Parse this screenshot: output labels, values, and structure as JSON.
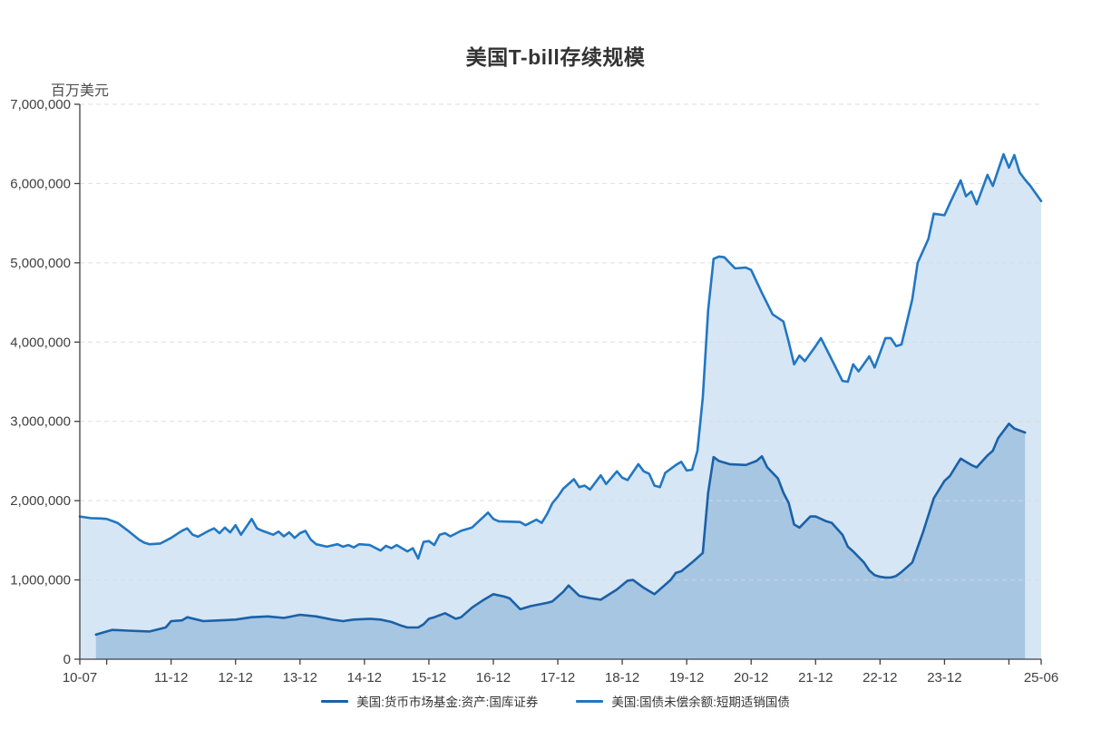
{
  "chart_data": {
    "type": "area",
    "title": "美国T-bill存续规模",
    "unit_label": "百万美元",
    "legend_position": "bottom-center",
    "grid": "horizontal-dashed",
    "colors": {
      "gridline": "#d9d9d9",
      "axis": "#404040",
      "tick_text": "#404040",
      "title_text": "#333333",
      "background": "#ffffff"
    },
    "y_axis": {
      "min": 0,
      "max": 7000000,
      "tick_step": 1000000,
      "tick_labels": [
        "0",
        "1,000,000",
        "2,000,000",
        "3,000,000",
        "4,000,000",
        "5,000,000",
        "6,000,000",
        "7,000,000"
      ]
    },
    "x_axis": {
      "start": "2010-07",
      "end": "2025-06",
      "ticks": [
        {
          "label": "10-07",
          "month": "2010-07"
        },
        {
          "label": "",
          "month": "2010-12"
        },
        {
          "label": "11-12",
          "month": "2011-12"
        },
        {
          "label": "12-12",
          "month": "2012-12"
        },
        {
          "label": "13-12",
          "month": "2013-12"
        },
        {
          "label": "14-12",
          "month": "2014-12"
        },
        {
          "label": "15-12",
          "month": "2015-12"
        },
        {
          "label": "16-12",
          "month": "2016-12"
        },
        {
          "label": "17-12",
          "month": "2017-12"
        },
        {
          "label": "18-12",
          "month": "2018-12"
        },
        {
          "label": "19-12",
          "month": "2019-12"
        },
        {
          "label": "20-12",
          "month": "2020-12"
        },
        {
          "label": "21-12",
          "month": "2021-12"
        },
        {
          "label": "22-12",
          "month": "2022-12"
        },
        {
          "label": "23-12",
          "month": "2023-12"
        },
        {
          "label": "",
          "month": "2024-12"
        },
        {
          "label": "25-06",
          "month": "2025-06"
        }
      ]
    },
    "series": [
      {
        "name": "美国:货币市场基金:资产:国库证券",
        "line_color": "#1a61a8",
        "fill_color": "#a7c6e2",
        "points": [
          [
            "2010-10",
            310000
          ],
          [
            "2010-11",
            330000
          ],
          [
            "2011-01",
            370000
          ],
          [
            "2011-04",
            360000
          ],
          [
            "2011-08",
            350000
          ],
          [
            "2011-11",
            400000
          ],
          [
            "2011-12",
            480000
          ],
          [
            "2012-02",
            490000
          ],
          [
            "2012-03",
            530000
          ],
          [
            "2012-06",
            480000
          ],
          [
            "2012-09",
            490000
          ],
          [
            "2012-12",
            500000
          ],
          [
            "2013-03",
            530000
          ],
          [
            "2013-06",
            540000
          ],
          [
            "2013-09",
            520000
          ],
          [
            "2013-12",
            560000
          ],
          [
            "2014-03",
            540000
          ],
          [
            "2014-06",
            500000
          ],
          [
            "2014-08",
            480000
          ],
          [
            "2014-10",
            500000
          ],
          [
            "2015-01",
            510000
          ],
          [
            "2015-03",
            500000
          ],
          [
            "2015-05",
            470000
          ],
          [
            "2015-07",
            420000
          ],
          [
            "2015-08",
            400000
          ],
          [
            "2015-10",
            400000
          ],
          [
            "2015-11",
            440000
          ],
          [
            "2015-12",
            510000
          ],
          [
            "2016-01",
            530000
          ],
          [
            "2016-03",
            580000
          ],
          [
            "2016-05",
            510000
          ],
          [
            "2016-06",
            530000
          ],
          [
            "2016-08",
            650000
          ],
          [
            "2016-10",
            740000
          ],
          [
            "2016-12",
            820000
          ],
          [
            "2017-02",
            790000
          ],
          [
            "2017-03",
            770000
          ],
          [
            "2017-05",
            630000
          ],
          [
            "2017-07",
            670000
          ],
          [
            "2017-10",
            710000
          ],
          [
            "2017-11",
            730000
          ],
          [
            "2018-01",
            850000
          ],
          [
            "2018-02",
            930000
          ],
          [
            "2018-04",
            800000
          ],
          [
            "2018-06",
            770000
          ],
          [
            "2018-08",
            750000
          ],
          [
            "2018-11",
            880000
          ],
          [
            "2019-01",
            990000
          ],
          [
            "2019-02",
            1000000
          ],
          [
            "2019-04",
            900000
          ],
          [
            "2019-06",
            820000
          ],
          [
            "2019-09",
            1000000
          ],
          [
            "2019-10",
            1090000
          ],
          [
            "2019-11",
            1110000
          ],
          [
            "2020-01",
            1220000
          ],
          [
            "2020-03",
            1340000
          ],
          [
            "2020-04",
            2100000
          ],
          [
            "2020-05",
            2550000
          ],
          [
            "2020-06",
            2500000
          ],
          [
            "2020-08",
            2460000
          ],
          [
            "2020-11",
            2450000
          ],
          [
            "2021-01",
            2500000
          ],
          [
            "2021-02",
            2560000
          ],
          [
            "2021-03",
            2420000
          ],
          [
            "2021-05",
            2280000
          ],
          [
            "2021-06",
            2100000
          ],
          [
            "2021-07",
            1970000
          ],
          [
            "2021-08",
            1700000
          ],
          [
            "2021-09",
            1660000
          ],
          [
            "2021-11",
            1800000
          ],
          [
            "2021-12",
            1800000
          ],
          [
            "2022-02",
            1740000
          ],
          [
            "2022-03",
            1720000
          ],
          [
            "2022-05",
            1570000
          ],
          [
            "2022-06",
            1420000
          ],
          [
            "2022-07",
            1360000
          ],
          [
            "2022-09",
            1220000
          ],
          [
            "2022-10",
            1120000
          ],
          [
            "2022-11",
            1060000
          ],
          [
            "2022-12",
            1040000
          ],
          [
            "2023-01",
            1030000
          ],
          [
            "2023-02",
            1030000
          ],
          [
            "2023-03",
            1050000
          ],
          [
            "2023-04",
            1100000
          ],
          [
            "2023-06",
            1220000
          ],
          [
            "2023-08",
            1600000
          ],
          [
            "2023-10",
            2030000
          ],
          [
            "2023-12",
            2250000
          ],
          [
            "2024-01",
            2310000
          ],
          [
            "2024-03",
            2530000
          ],
          [
            "2024-05",
            2450000
          ],
          [
            "2024-06",
            2420000
          ],
          [
            "2024-08",
            2570000
          ],
          [
            "2024-09",
            2630000
          ],
          [
            "2024-10",
            2790000
          ],
          [
            "2024-12",
            2970000
          ],
          [
            "2025-01",
            2910000
          ],
          [
            "2025-03",
            2860000
          ]
        ]
      },
      {
        "name": "美国:国债未偿余额:短期适销国债",
        "line_color": "#2177c3",
        "fill_color": "#d7e6f4",
        "points": [
          [
            "2010-07",
            1800000
          ],
          [
            "2010-09",
            1780000
          ],
          [
            "2010-11",
            1775000
          ],
          [
            "2010-12",
            1770000
          ],
          [
            "2011-02",
            1720000
          ],
          [
            "2011-04",
            1620000
          ],
          [
            "2011-06",
            1510000
          ],
          [
            "2011-07",
            1470000
          ],
          [
            "2011-08",
            1450000
          ],
          [
            "2011-10",
            1460000
          ],
          [
            "2011-12",
            1530000
          ],
          [
            "2012-02",
            1620000
          ],
          [
            "2012-03",
            1650000
          ],
          [
            "2012-04",
            1570000
          ],
          [
            "2012-05",
            1545000
          ],
          [
            "2012-07",
            1620000
          ],
          [
            "2012-08",
            1650000
          ],
          [
            "2012-09",
            1590000
          ],
          [
            "2012-10",
            1660000
          ],
          [
            "2012-11",
            1600000
          ],
          [
            "2012-12",
            1690000
          ],
          [
            "2013-01",
            1570000
          ],
          [
            "2013-03",
            1770000
          ],
          [
            "2013-04",
            1650000
          ],
          [
            "2013-05",
            1620000
          ],
          [
            "2013-07",
            1570000
          ],
          [
            "2013-08",
            1610000
          ],
          [
            "2013-09",
            1550000
          ],
          [
            "2013-10",
            1600000
          ],
          [
            "2013-11",
            1530000
          ],
          [
            "2013-12",
            1590000
          ],
          [
            "2014-01",
            1620000
          ],
          [
            "2014-02",
            1510000
          ],
          [
            "2014-03",
            1450000
          ],
          [
            "2014-05",
            1420000
          ],
          [
            "2014-07",
            1450000
          ],
          [
            "2014-08",
            1420000
          ],
          [
            "2014-09",
            1440000
          ],
          [
            "2014-10",
            1410000
          ],
          [
            "2014-11",
            1450000
          ],
          [
            "2015-01",
            1440000
          ],
          [
            "2015-03",
            1370000
          ],
          [
            "2015-04",
            1430000
          ],
          [
            "2015-05",
            1400000
          ],
          [
            "2015-06",
            1440000
          ],
          [
            "2015-08",
            1360000
          ],
          [
            "2015-09",
            1400000
          ],
          [
            "2015-10",
            1270000
          ],
          [
            "2015-11",
            1480000
          ],
          [
            "2015-12",
            1490000
          ],
          [
            "2016-01",
            1440000
          ],
          [
            "2016-02",
            1570000
          ],
          [
            "2016-03",
            1590000
          ],
          [
            "2016-04",
            1550000
          ],
          [
            "2016-06",
            1620000
          ],
          [
            "2016-08",
            1660000
          ],
          [
            "2016-11",
            1850000
          ],
          [
            "2016-12",
            1770000
          ],
          [
            "2017-01",
            1740000
          ],
          [
            "2017-05",
            1730000
          ],
          [
            "2017-06",
            1690000
          ],
          [
            "2017-08",
            1760000
          ],
          [
            "2017-09",
            1720000
          ],
          [
            "2017-10",
            1830000
          ],
          [
            "2017-11",
            1970000
          ],
          [
            "2017-12",
            2050000
          ],
          [
            "2018-01",
            2150000
          ],
          [
            "2018-03",
            2270000
          ],
          [
            "2018-04",
            2170000
          ],
          [
            "2018-05",
            2190000
          ],
          [
            "2018-06",
            2140000
          ],
          [
            "2018-08",
            2320000
          ],
          [
            "2018-09",
            2210000
          ],
          [
            "2018-11",
            2370000
          ],
          [
            "2018-12",
            2290000
          ],
          [
            "2019-01",
            2260000
          ],
          [
            "2019-03",
            2460000
          ],
          [
            "2019-04",
            2370000
          ],
          [
            "2019-05",
            2340000
          ],
          [
            "2019-06",
            2190000
          ],
          [
            "2019-07",
            2170000
          ],
          [
            "2019-08",
            2350000
          ],
          [
            "2019-10",
            2450000
          ],
          [
            "2019-11",
            2490000
          ],
          [
            "2019-12",
            2380000
          ],
          [
            "2020-01",
            2390000
          ],
          [
            "2020-02",
            2630000
          ],
          [
            "2020-03",
            3300000
          ],
          [
            "2020-04",
            4400000
          ],
          [
            "2020-05",
            5050000
          ],
          [
            "2020-06",
            5080000
          ],
          [
            "2020-07",
            5070000
          ],
          [
            "2020-09",
            4930000
          ],
          [
            "2020-11",
            4940000
          ],
          [
            "2020-12",
            4910000
          ],
          [
            "2021-02",
            4620000
          ],
          [
            "2021-04",
            4350000
          ],
          [
            "2021-06",
            4260000
          ],
          [
            "2021-07",
            4000000
          ],
          [
            "2021-08",
            3720000
          ],
          [
            "2021-09",
            3830000
          ],
          [
            "2021-10",
            3760000
          ],
          [
            "2021-12",
            3950000
          ],
          [
            "2022-01",
            4050000
          ],
          [
            "2022-03",
            3780000
          ],
          [
            "2022-05",
            3510000
          ],
          [
            "2022-06",
            3500000
          ],
          [
            "2022-07",
            3720000
          ],
          [
            "2022-08",
            3630000
          ],
          [
            "2022-10",
            3820000
          ],
          [
            "2022-11",
            3680000
          ],
          [
            "2023-01",
            4050000
          ],
          [
            "2023-02",
            4050000
          ],
          [
            "2023-03",
            3950000
          ],
          [
            "2023-04",
            3970000
          ],
          [
            "2023-06",
            4540000
          ],
          [
            "2023-07",
            5000000
          ],
          [
            "2023-09",
            5300000
          ],
          [
            "2023-10",
            5620000
          ],
          [
            "2023-12",
            5600000
          ],
          [
            "2024-01",
            5750000
          ],
          [
            "2024-03",
            6040000
          ],
          [
            "2024-04",
            5840000
          ],
          [
            "2024-05",
            5900000
          ],
          [
            "2024-06",
            5740000
          ],
          [
            "2024-08",
            6110000
          ],
          [
            "2024-09",
            5970000
          ],
          [
            "2024-11",
            6370000
          ],
          [
            "2024-12",
            6200000
          ],
          [
            "2025-01",
            6360000
          ],
          [
            "2025-02",
            6140000
          ],
          [
            "2025-03",
            6050000
          ],
          [
            "2025-04",
            5970000
          ],
          [
            "2025-06",
            5780000
          ]
        ]
      }
    ]
  }
}
